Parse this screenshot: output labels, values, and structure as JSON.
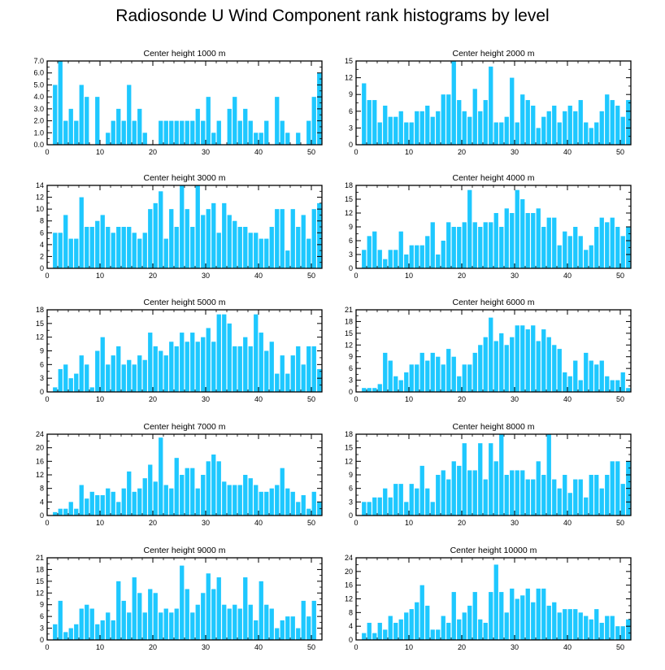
{
  "title": "Radiosonde U Wind Component rank histograms by level",
  "colors": {
    "bar": "#1EC8FF",
    "axis": "#000000",
    "background": "#ffffff"
  },
  "chart_data": [
    {
      "type": "bar",
      "title": "Center height 1000 m",
      "x": "0..51",
      "xlim": [
        0,
        52
      ],
      "ylim": [
        0,
        7
      ],
      "xticks": [
        0,
        10,
        20,
        30,
        40,
        50
      ],
      "yticks": [
        0,
        1,
        2,
        3,
        4,
        5,
        6,
        7
      ],
      "ytick_labels": [
        "0.0",
        "1.0",
        "2.0",
        "3.0",
        "4.0",
        "5.0",
        "6.0",
        "7.0"
      ],
      "values": [
        0,
        5,
        7,
        2,
        3,
        2,
        5,
        4,
        0,
        4,
        0,
        1,
        2,
        3,
        2,
        5,
        2,
        3,
        1,
        0,
        0,
        2,
        2,
        2,
        2,
        2,
        2,
        2,
        3,
        2,
        4,
        1,
        2,
        0,
        3,
        4,
        2,
        3,
        2,
        1,
        1,
        2,
        0,
        4,
        2,
        1,
        0,
        1,
        0,
        2,
        4,
        6
      ]
    },
    {
      "type": "bar",
      "title": "Center height 2000 m",
      "x": "0..51",
      "xlim": [
        0,
        52
      ],
      "ylim": [
        0,
        15
      ],
      "xticks": [
        0,
        10,
        20,
        30,
        40,
        50
      ],
      "yticks": [
        0,
        3,
        6,
        9,
        12,
        15
      ],
      "ytick_labels": [
        "0",
        "3",
        "6",
        "9",
        "12",
        "15"
      ],
      "values": [
        0,
        11,
        8,
        8,
        4,
        7,
        5,
        5,
        6,
        4,
        4,
        6,
        6,
        7,
        5,
        6,
        9,
        9,
        15,
        8,
        6,
        5,
        10,
        6,
        8,
        14,
        4,
        4,
        5,
        12,
        4,
        9,
        8,
        7,
        3,
        5,
        6,
        7,
        4,
        6,
        7,
        6,
        8,
        4,
        3,
        4,
        6,
        9,
        8,
        7,
        5,
        8
      ]
    },
    {
      "type": "bar",
      "title": "Center height 3000 m",
      "x": "0..51",
      "xlim": [
        0,
        52
      ],
      "ylim": [
        0,
        14
      ],
      "xticks": [
        0,
        10,
        20,
        30,
        40,
        50
      ],
      "yticks": [
        0,
        2,
        4,
        6,
        8,
        10,
        12,
        14
      ],
      "ytick_labels": [
        "0",
        "2",
        "4",
        "6",
        "8",
        "10",
        "12",
        "14"
      ],
      "values": [
        0,
        6,
        6,
        9,
        5,
        5,
        12,
        7,
        7,
        8,
        9,
        7,
        6,
        7,
        7,
        7,
        6,
        5,
        6,
        10,
        11,
        13,
        5,
        10,
        7,
        14,
        10,
        7,
        14,
        9,
        10,
        11,
        6,
        11,
        9,
        8,
        7,
        7,
        6,
        6,
        5,
        5,
        7,
        10,
        10,
        3,
        10,
        7,
        9,
        5,
        10,
        11
      ]
    },
    {
      "type": "bar",
      "title": "Center height 4000 m",
      "x": "0..51",
      "xlim": [
        0,
        52
      ],
      "ylim": [
        0,
        18
      ],
      "xticks": [
        0,
        10,
        20,
        30,
        40,
        50
      ],
      "yticks": [
        0,
        3,
        6,
        9,
        12,
        15,
        18
      ],
      "ytick_labels": [
        "0",
        "3",
        "6",
        "9",
        "12",
        "15",
        "18"
      ],
      "values": [
        0,
        4,
        7,
        8,
        4,
        2,
        4,
        4,
        8,
        3,
        5,
        5,
        5,
        7,
        10,
        3,
        6,
        10,
        9,
        9,
        10,
        17,
        10,
        9,
        10,
        10,
        12,
        9,
        13,
        12,
        17,
        15,
        12,
        12,
        13,
        9,
        11,
        11,
        5,
        8,
        7,
        9,
        7,
        4,
        5,
        9,
        11,
        10,
        11,
        9,
        7,
        9
      ]
    },
    {
      "type": "bar",
      "title": "Center height 5000 m",
      "x": "0..51",
      "xlim": [
        0,
        52
      ],
      "ylim": [
        0,
        18
      ],
      "xticks": [
        0,
        10,
        20,
        30,
        40,
        50
      ],
      "yticks": [
        0,
        3,
        6,
        9,
        12,
        15,
        18
      ],
      "ytick_labels": [
        "0",
        "3",
        "6",
        "9",
        "12",
        "15",
        "18"
      ],
      "values": [
        0,
        1,
        5,
        6,
        3,
        4,
        8,
        6,
        1,
        9,
        12,
        6,
        8,
        10,
        6,
        7,
        6,
        8,
        7,
        13,
        10,
        9,
        8,
        11,
        10,
        13,
        11,
        13,
        11,
        12,
        14,
        11,
        17,
        17,
        15,
        10,
        10,
        12,
        10,
        17,
        13,
        9,
        11,
        4,
        8,
        4,
        8,
        10,
        6,
        10,
        10,
        5
      ]
    },
    {
      "type": "bar",
      "title": "Center height 6000 m",
      "x": "0..51",
      "xlim": [
        0,
        52
      ],
      "ylim": [
        0,
        21
      ],
      "xticks": [
        0,
        10,
        20,
        30,
        40,
        50
      ],
      "yticks": [
        0,
        3,
        6,
        9,
        12,
        15,
        18,
        21
      ],
      "ytick_labels": [
        "0",
        "3",
        "6",
        "9",
        "12",
        "15",
        "18",
        "21"
      ],
      "values": [
        0,
        1,
        1,
        1,
        2,
        10,
        8,
        4,
        3,
        5,
        7,
        7,
        10,
        8,
        10,
        9,
        7,
        11,
        9,
        4,
        7,
        7,
        10,
        12,
        14,
        19,
        13,
        15,
        12,
        14,
        17,
        17,
        16,
        17,
        13,
        16,
        14,
        12,
        11,
        5,
        4,
        8,
        3,
        10,
        8,
        7,
        8,
        4,
        3,
        3,
        5,
        1
      ]
    },
    {
      "type": "bar",
      "title": "Center height 7000 m",
      "x": "0..51",
      "xlim": [
        0,
        52
      ],
      "ylim": [
        0,
        24
      ],
      "xticks": [
        0,
        10,
        20,
        30,
        40,
        50
      ],
      "yticks": [
        0,
        4,
        8,
        12,
        16,
        20,
        24
      ],
      "ytick_labels": [
        "0",
        "4",
        "8",
        "12",
        "16",
        "20",
        "24"
      ],
      "values": [
        0,
        1,
        2,
        2,
        4,
        2,
        9,
        5,
        7,
        6,
        6,
        8,
        7,
        4,
        8,
        13,
        7,
        8,
        11,
        15,
        10,
        23,
        9,
        8,
        17,
        12,
        14,
        14,
        8,
        12,
        16,
        18,
        16,
        10,
        9,
        9,
        9,
        12,
        11,
        9,
        7,
        7,
        8,
        9,
        14,
        8,
        7,
        4,
        6,
        2,
        7,
        4
      ]
    },
    {
      "type": "bar",
      "title": "Center height 8000 m",
      "x": "0..51",
      "xlim": [
        0,
        52
      ],
      "ylim": [
        0,
        18
      ],
      "xticks": [
        0,
        10,
        20,
        30,
        40,
        50
      ],
      "yticks": [
        0,
        3,
        6,
        9,
        12,
        15,
        18
      ],
      "ytick_labels": [
        "0",
        "3",
        "6",
        "9",
        "12",
        "15",
        "18"
      ],
      "values": [
        0,
        3,
        3,
        4,
        4,
        6,
        4,
        7,
        7,
        3,
        7,
        6,
        11,
        6,
        3,
        9,
        10,
        8,
        12,
        11,
        16,
        10,
        10,
        16,
        8,
        16,
        12,
        18,
        9,
        10,
        10,
        10,
        8,
        8,
        12,
        9,
        18,
        8,
        6,
        9,
        5,
        8,
        8,
        4,
        9,
        9,
        6,
        9,
        12,
        12,
        7,
        12
      ]
    },
    {
      "type": "bar",
      "title": "Center height 9000 m",
      "x": "0..51",
      "xlim": [
        0,
        52
      ],
      "ylim": [
        0,
        21
      ],
      "xticks": [
        0,
        10,
        20,
        30,
        40,
        50
      ],
      "yticks": [
        0,
        3,
        6,
        9,
        12,
        15,
        18,
        21
      ],
      "ytick_labels": [
        "0",
        "3",
        "6",
        "9",
        "12",
        "15",
        "18",
        "21"
      ],
      "values": [
        0,
        4,
        10,
        2,
        3,
        4,
        8,
        9,
        8,
        4,
        5,
        7,
        5,
        15,
        10,
        7,
        16,
        12,
        7,
        13,
        12,
        7,
        8,
        7,
        8,
        19,
        13,
        7,
        9,
        12,
        17,
        13,
        16,
        9,
        8,
        9,
        8,
        16,
        9,
        5,
        15,
        9,
        8,
        3,
        5,
        6,
        6,
        3,
        10,
        6,
        10,
        0
      ]
    },
    {
      "type": "bar",
      "title": "Center height 10000 m",
      "x": "0..51",
      "xlim": [
        0,
        52
      ],
      "ylim": [
        0,
        24
      ],
      "xticks": [
        0,
        10,
        20,
        30,
        40,
        50
      ],
      "yticks": [
        0,
        4,
        8,
        12,
        16,
        20,
        24
      ],
      "ytick_labels": [
        "0",
        "4",
        "8",
        "12",
        "16",
        "20",
        "24"
      ],
      "values": [
        0,
        2,
        5,
        2,
        5,
        3,
        7,
        5,
        6,
        8,
        9,
        11,
        16,
        10,
        3,
        3,
        7,
        5,
        14,
        6,
        8,
        10,
        14,
        6,
        5,
        14,
        22,
        14,
        8,
        15,
        12,
        13,
        15,
        11,
        15,
        15,
        10,
        11,
        8,
        9,
        9,
        9,
        8,
        7,
        6,
        9,
        5,
        7,
        7,
        4,
        4,
        6
      ]
    }
  ]
}
